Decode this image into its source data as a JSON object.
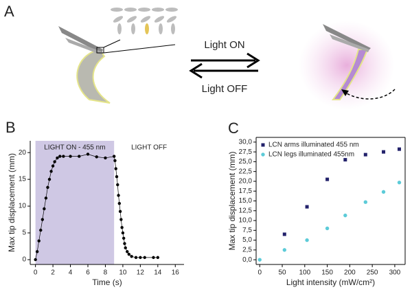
{
  "panel_a": {
    "label": "A",
    "on_label": "Light ON",
    "off_label": "Light OFF"
  },
  "chart_data": [
    {
      "type": "line",
      "panel_label": "B",
      "xlabel": "Time (s)",
      "ylabel": "Max tip displacement (mm)",
      "shade": [
        0,
        9
      ],
      "shade_color": "#cfc8e4",
      "shade_label": "LIGHT ON - 455 nm",
      "after_label": "LIGHT OFF",
      "xlim": [
        -0.6,
        17
      ],
      "xticks": [
        0,
        2,
        4,
        6,
        8,
        10,
        12,
        14,
        16
      ],
      "ylim": [
        -0.9,
        22.2
      ],
      "yticks": [
        0,
        5,
        10,
        15,
        20
      ],
      "series": [
        {
          "color": "#000000",
          "x": [
            0,
            0.2,
            0.4,
            0.6,
            0.8,
            1.0,
            1.2,
            1.4,
            1.6,
            1.8,
            2.0,
            2.2,
            2.5,
            2.8,
            3.2,
            4,
            5,
            6,
            7,
            8,
            9,
            9.1,
            9.2,
            9.3,
            9.4,
            9.5,
            9.6,
            9.7,
            9.8,
            9.9,
            10,
            10.1,
            10.2,
            10.3,
            10.5,
            10.7,
            11,
            11.5,
            12,
            12.5,
            13.5,
            14
          ],
          "values": [
            0,
            1.5,
            3.5,
            5.5,
            7.5,
            9.5,
            11.5,
            13.5,
            15,
            16.5,
            17.5,
            18.3,
            19,
            19.3,
            19.3,
            19.3,
            19.3,
            19.7,
            19.2,
            19,
            19.3,
            18.5,
            17,
            15.5,
            14,
            12,
            10.5,
            9,
            7.5,
            6,
            5,
            4,
            3,
            2.2,
            1.5,
            1,
            0.6,
            0.4,
            0.4,
            0.4,
            0.4,
            0.4
          ]
        }
      ]
    },
    {
      "type": "scatter",
      "panel_label": "C",
      "xlabel": "Light intensity (mW/cm²)",
      "ylabel": "Max tip displacement (mm)",
      "xlim": [
        -8,
        323
      ],
      "xticks": [
        0,
        50,
        100,
        150,
        200,
        250,
        300
      ],
      "ylim": [
        -1.2,
        31.2
      ],
      "yticks": [
        {
          "value": 0,
          "label": "0,0"
        },
        {
          "value": 2.5,
          "label": "2,5"
        },
        {
          "value": 5,
          "label": "5,0"
        },
        {
          "value": 7.5,
          "label": "7,5"
        },
        {
          "value": 10,
          "label": "10,0"
        },
        {
          "value": 12.5,
          "label": "12,5"
        },
        {
          "value": 15,
          "label": "15,0"
        },
        {
          "value": 17.5,
          "label": "17,5"
        },
        {
          "value": 20,
          "label": "20,0"
        },
        {
          "value": 22.5,
          "label": "22,5"
        },
        {
          "value": 25,
          "label": "25,0"
        },
        {
          "value": 27.5,
          "label": "27,5"
        },
        {
          "value": 30,
          "label": "30,0"
        }
      ],
      "legend": "upper-left",
      "series": [
        {
          "name": "LCN arms illuminated 455 nm",
          "color": "#23226b",
          "marker": "square",
          "x": [
            55,
            105,
            150,
            190,
            235,
            275,
            310
          ],
          "values": [
            6.5,
            13.5,
            20.5,
            25.5,
            26.8,
            27.5,
            28.2
          ]
        },
        {
          "name": "LCN legs illuminated 455nm",
          "color": "#5ccbd8",
          "marker": "circle",
          "x": [
            0,
            55,
            105,
            150,
            190,
            235,
            275,
            310
          ],
          "values": [
            0,
            2.5,
            5,
            8,
            11.3,
            14.7,
            17.3,
            19.7
          ]
        }
      ]
    }
  ]
}
